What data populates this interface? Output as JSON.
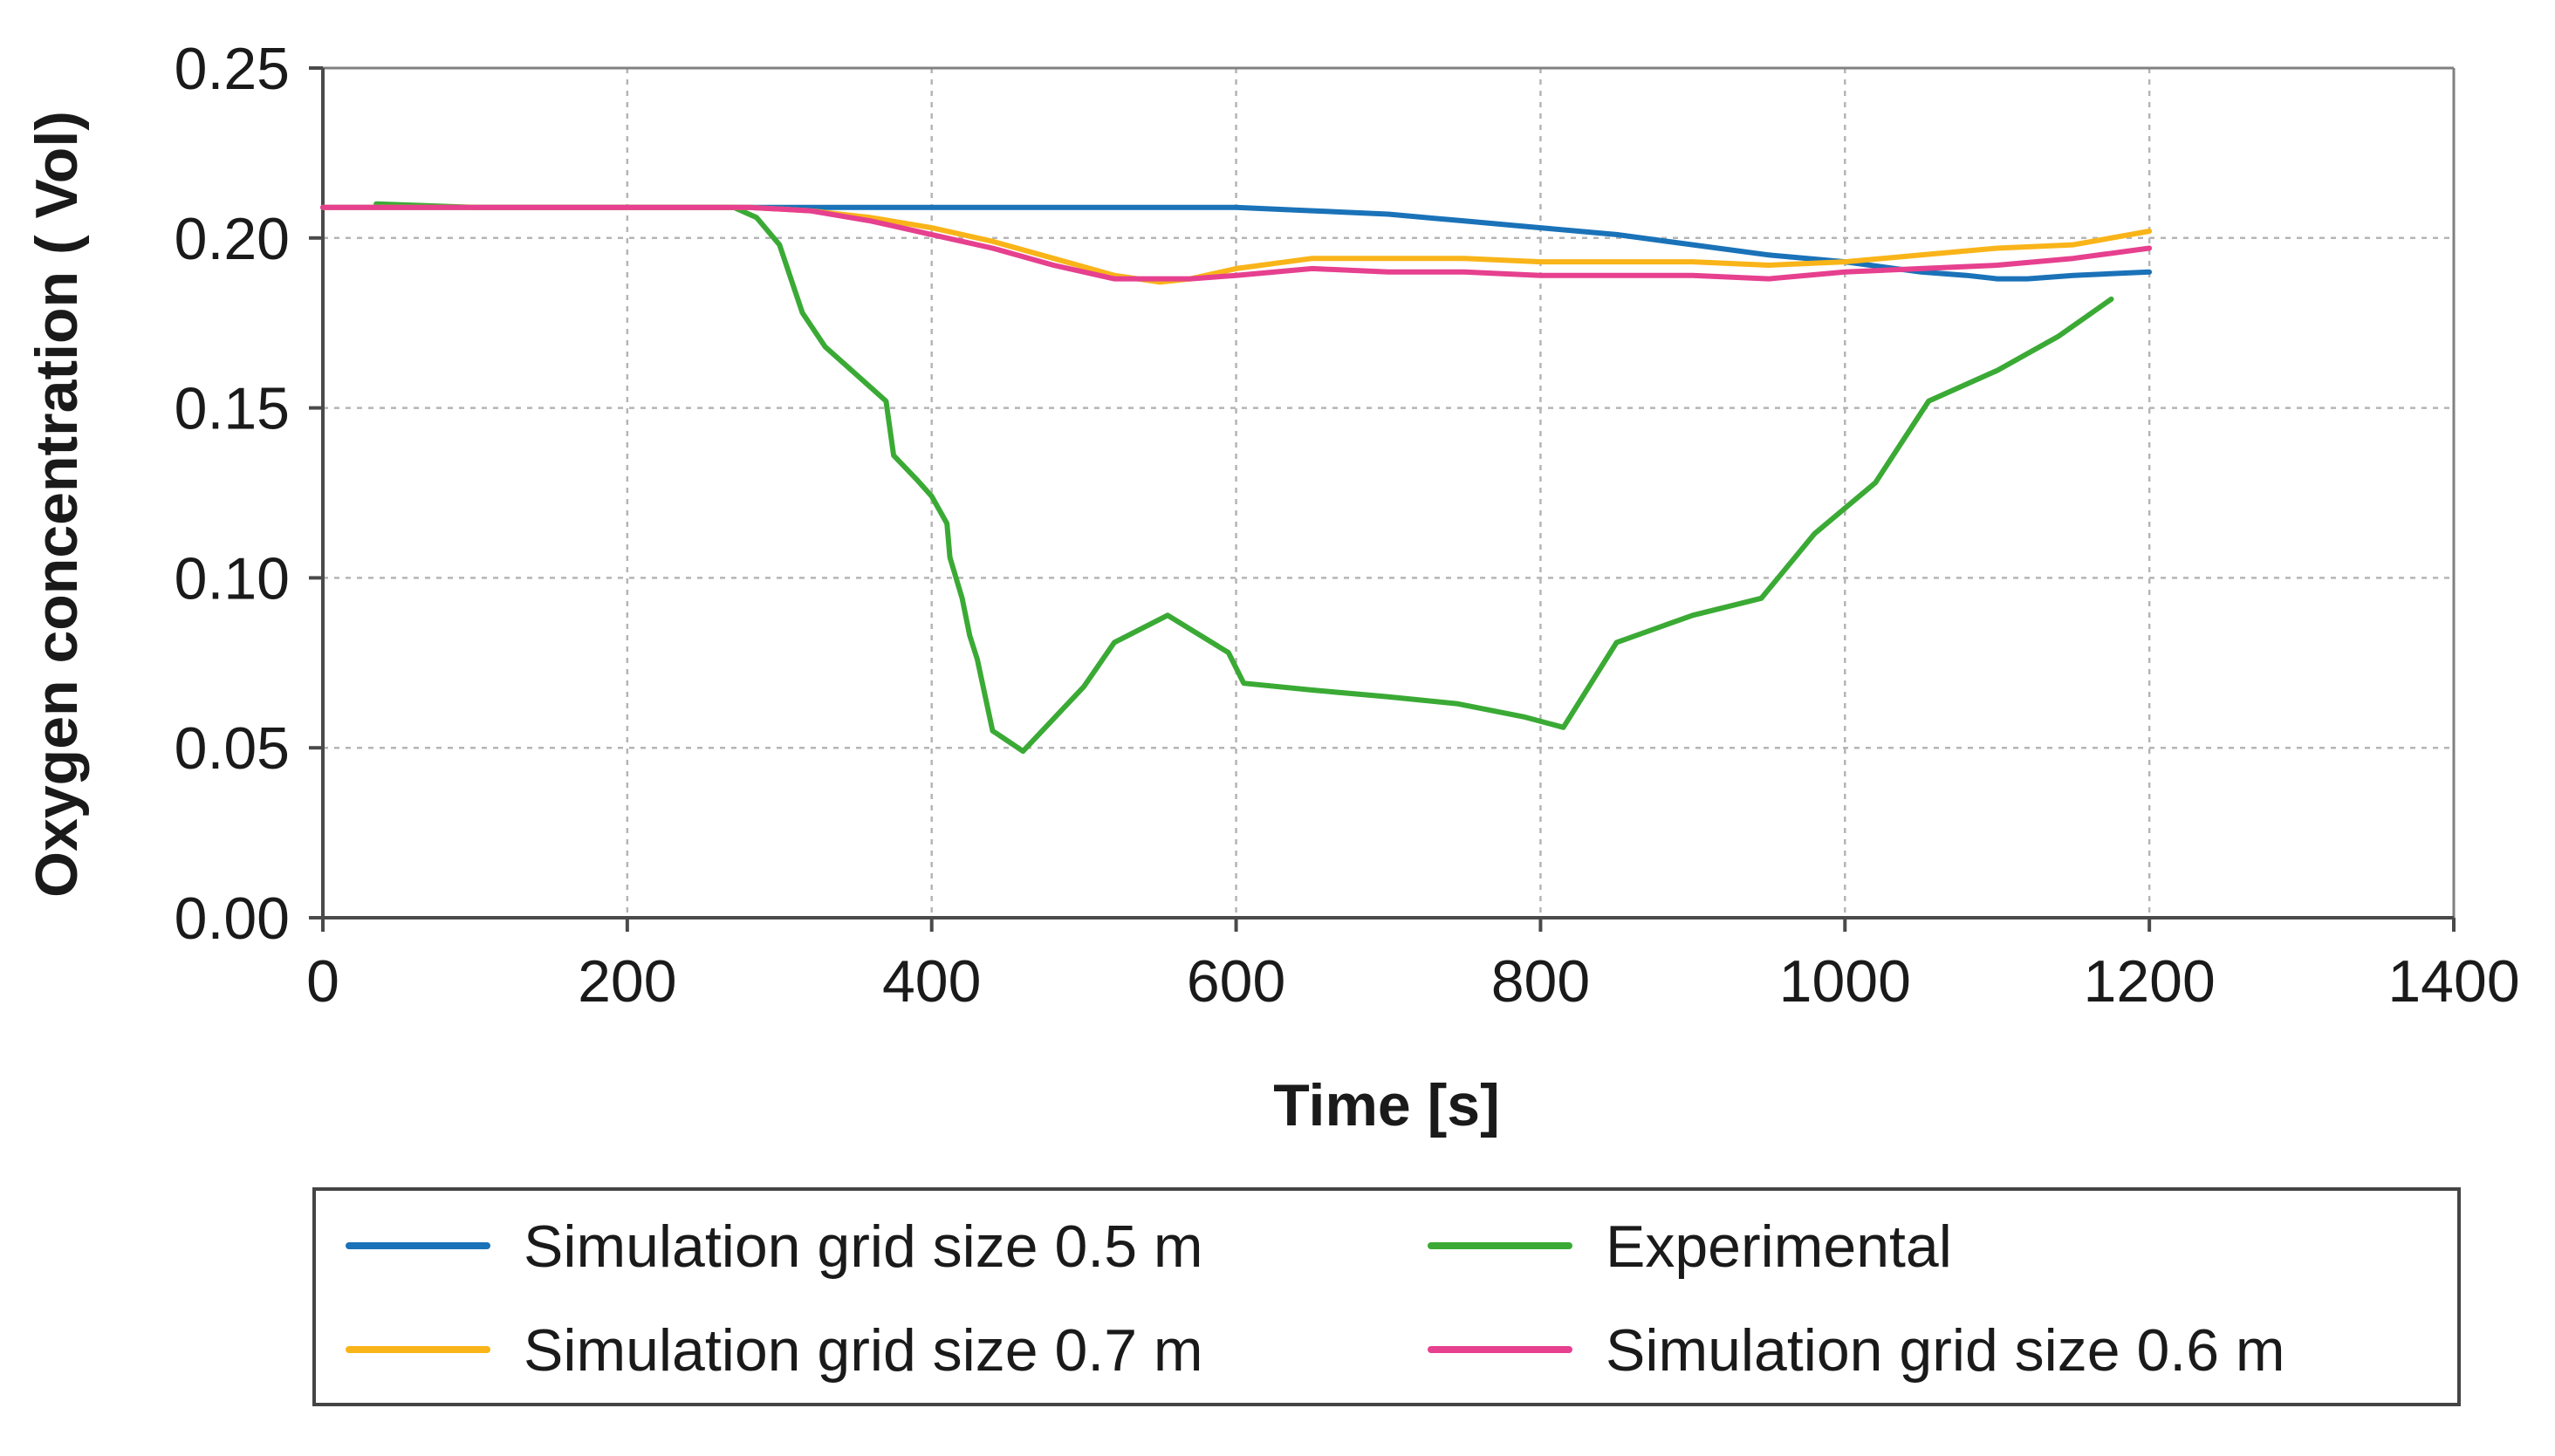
{
  "chart_data": {
    "type": "line",
    "title": "",
    "xlabel": "Time [s]",
    "ylabel": "Oxygen concentration ( Vol)",
    "xlim": [
      0,
      1400
    ],
    "ylim": [
      0,
      0.25
    ],
    "x_ticks": [
      0,
      200,
      400,
      600,
      800,
      1000,
      1200,
      1400
    ],
    "y_ticks": [
      0.0,
      0.05,
      0.1,
      0.15,
      0.2,
      0.25
    ],
    "x_tick_labels": [
      "0",
      "200",
      "400",
      "600",
      "800",
      "1000",
      "1200",
      "1400"
    ],
    "y_tick_labels": [
      "0.00",
      "0.05",
      "0.10",
      "0.15",
      "0.20",
      "0.25"
    ],
    "grid": true,
    "legend_position": "bottom",
    "series": [
      {
        "name": "Simulation grid size 0.5 m",
        "color": "#1a72b8",
        "x": [
          0,
          100,
          200,
          300,
          400,
          500,
          600,
          650,
          700,
          750,
          800,
          850,
          900,
          950,
          1000,
          1050,
          1080,
          1100,
          1120,
          1150,
          1200
        ],
        "y": [
          0.209,
          0.209,
          0.209,
          0.209,
          0.209,
          0.209,
          0.209,
          0.208,
          0.207,
          0.205,
          0.203,
          0.201,
          0.198,
          0.195,
          0.193,
          0.19,
          0.189,
          0.188,
          0.188,
          0.189,
          0.19
        ]
      },
      {
        "name": "Experimental",
        "color": "#3aaa35",
        "x": [
          35,
          100,
          200,
          270,
          285,
          300,
          315,
          330,
          350,
          370,
          375,
          390,
          400,
          410,
          412,
          420,
          425,
          430,
          440,
          460,
          500,
          520,
          555,
          595,
          605,
          650,
          700,
          745,
          790,
          815,
          850,
          900,
          945,
          980,
          1020,
          1055,
          1100,
          1140,
          1175
        ],
        "y": [
          0.21,
          0.209,
          0.209,
          0.209,
          0.206,
          0.198,
          0.178,
          0.168,
          0.16,
          0.152,
          0.136,
          0.129,
          0.124,
          0.116,
          0.106,
          0.094,
          0.083,
          0.076,
          0.055,
          0.049,
          0.068,
          0.081,
          0.089,
          0.078,
          0.069,
          0.067,
          0.065,
          0.063,
          0.059,
          0.056,
          0.081,
          0.089,
          0.094,
          0.113,
          0.128,
          0.152,
          0.161,
          0.171,
          0.182
        ]
      },
      {
        "name": "Simulation grid size 0.7 m",
        "color": "#f9b419",
        "x": [
          0,
          100,
          200,
          280,
          320,
          360,
          400,
          440,
          480,
          520,
          550,
          570,
          600,
          650,
          700,
          750,
          800,
          850,
          900,
          950,
          1000,
          1050,
          1100,
          1150,
          1200
        ],
        "y": [
          0.209,
          0.209,
          0.209,
          0.209,
          0.208,
          0.206,
          0.203,
          0.199,
          0.194,
          0.189,
          0.187,
          0.188,
          0.191,
          0.194,
          0.194,
          0.194,
          0.193,
          0.193,
          0.193,
          0.192,
          0.193,
          0.195,
          0.197,
          0.198,
          0.202
        ]
      },
      {
        "name": "Simulation grid size 0.6 m",
        "color": "#e6408f",
        "x": [
          0,
          100,
          200,
          280,
          320,
          360,
          400,
          440,
          480,
          520,
          550,
          570,
          600,
          650,
          700,
          750,
          800,
          850,
          900,
          950,
          1000,
          1050,
          1100,
          1150,
          1200
        ],
        "y": [
          0.209,
          0.209,
          0.209,
          0.209,
          0.208,
          0.205,
          0.201,
          0.197,
          0.192,
          0.188,
          0.188,
          0.188,
          0.189,
          0.191,
          0.19,
          0.19,
          0.189,
          0.189,
          0.189,
          0.188,
          0.19,
          0.191,
          0.192,
          0.194,
          0.197
        ]
      }
    ]
  },
  "legend": {
    "layout": [
      [
        "Simulation grid size 0.5 m",
        "Experimental"
      ],
      [
        "Simulation grid size 0.7 m",
        "Simulation grid size 0.6 m"
      ]
    ]
  }
}
